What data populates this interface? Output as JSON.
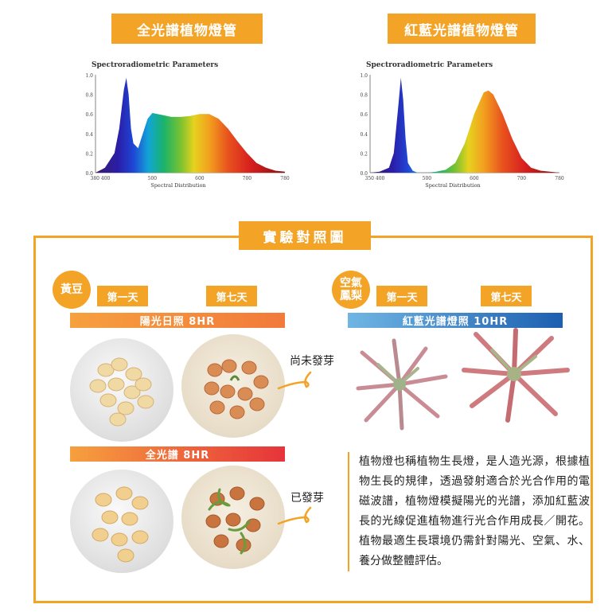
{
  "panel_left": {
    "title": "全光譜植物燈管",
    "chart_data": {
      "type": "area",
      "title": "Spectroradiometric Parameters",
      "xlabel": "Spectral Distribution",
      "ylabel": "",
      "xlim": [
        380,
        780
      ],
      "ylim": [
        0,
        1.0
      ],
      "x_tick_labels": [
        "380 400",
        "500",
        "600",
        "700",
        "780"
      ],
      "y_tick_labels": [
        "0.0",
        "0.2",
        "0.4",
        "0.6",
        "0.8",
        "1.0"
      ],
      "x": [
        380,
        400,
        420,
        430,
        440,
        445,
        450,
        455,
        460,
        470,
        480,
        490,
        500,
        520,
        540,
        560,
        580,
        600,
        620,
        640,
        660,
        680,
        700,
        720,
        740,
        760,
        780
      ],
      "y": [
        0.0,
        0.05,
        0.2,
        0.45,
        0.85,
        0.97,
        0.8,
        0.45,
        0.3,
        0.25,
        0.4,
        0.55,
        0.61,
        0.59,
        0.57,
        0.57,
        0.58,
        0.6,
        0.6,
        0.55,
        0.45,
        0.32,
        0.2,
        0.1,
        0.05,
        0.02,
        0.01
      ]
    }
  },
  "panel_right": {
    "title": "紅藍光譜植物燈管",
    "chart_data": {
      "type": "area",
      "title": "Spectroradiometric Parameters",
      "xlabel": "Spectral Distribution",
      "ylabel": "",
      "xlim": [
        380,
        780
      ],
      "ylim": [
        0,
        1.0
      ],
      "x_tick_labels": [
        "350 400",
        "500",
        "600",
        "700",
        "780"
      ],
      "y_tick_labels": [
        "0.0",
        "0.2",
        "0.4",
        "0.6",
        "0.8",
        "1.0"
      ],
      "x": [
        380,
        400,
        420,
        430,
        440,
        445,
        450,
        455,
        460,
        470,
        480,
        500,
        520,
        540,
        560,
        580,
        600,
        620,
        630,
        640,
        660,
        680,
        700,
        720,
        740,
        760,
        780
      ],
      "y": [
        0.0,
        0.01,
        0.05,
        0.2,
        0.7,
        0.97,
        0.75,
        0.35,
        0.1,
        0.02,
        0.0,
        0.0,
        0.01,
        0.03,
        0.1,
        0.3,
        0.6,
        0.82,
        0.84,
        0.8,
        0.6,
        0.35,
        0.15,
        0.05,
        0.02,
        0.01,
        0.0
      ]
    }
  },
  "experiment": {
    "title": "實驗對照圖",
    "soybean": {
      "label": "黃豆",
      "day1": "第一天",
      "day7": "第七天",
      "sun_bar": "陽光日照 8HR",
      "full_bar": "全光譜 8HR",
      "note_not_sprouted": "尚未發芽",
      "note_sprouted": "已發芽"
    },
    "airplant": {
      "label_line1": "空氣",
      "label_line2": "鳳梨",
      "day1": "第一天",
      "day7": "第七天",
      "rb_bar": "紅藍光譜燈照 10HR"
    },
    "description": "植物燈也稱植物生長燈，是人造光源，根據植物生長的規律，透過發射適合於光合作用的電磁波譜，植物燈模擬陽光的光譜，添加紅藍波長的光線促進植物進行光合作用成長／開花。植物最適生長環境仍需針對陽光、空氣、水、養分做整體評估。"
  },
  "colors": {
    "accent": "#f3a326",
    "blue_bar": "#1d5fb0",
    "red_bar": "#e6343a"
  }
}
